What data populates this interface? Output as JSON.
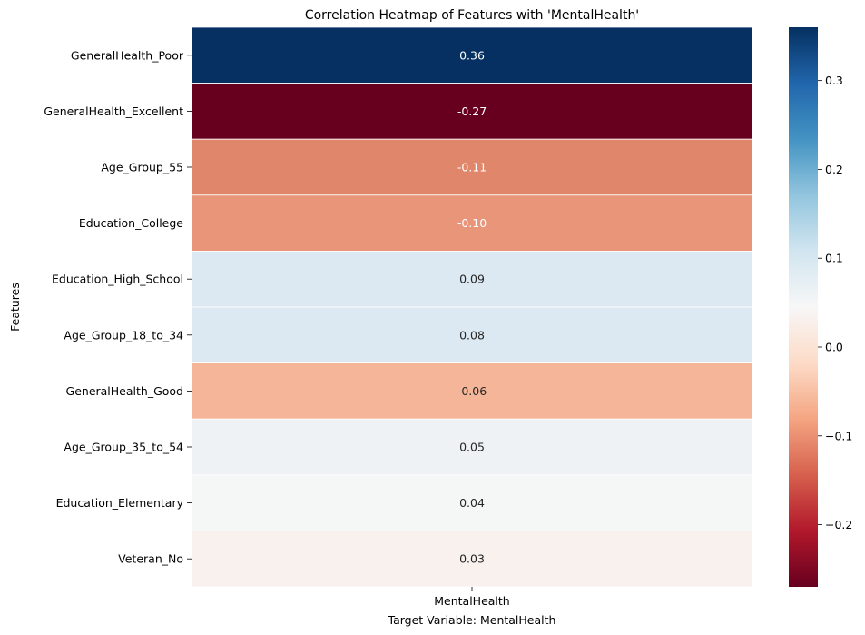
{
  "chart_data": {
    "type": "heatmap",
    "title": "Correlation Heatmap of Features with 'MentalHealth'",
    "xlabel": "Target Variable: MentalHealth",
    "ylabel": "Features",
    "columns": [
      "MentalHealth"
    ],
    "rows": [
      {
        "label": "GeneralHealth_Poor",
        "value": 0.36,
        "display": "0.36",
        "color": "#053061"
      },
      {
        "label": "GeneralHealth_Excellent",
        "value": -0.27,
        "display": "-0.27",
        "color": "#67001f"
      },
      {
        "label": "Age_Group_55",
        "value": -0.11,
        "display": "-0.11",
        "color": "#e0876b"
      },
      {
        "label": "Education_College",
        "value": -0.1,
        "display": "-0.10",
        "color": "#e8957a"
      },
      {
        "label": "Education_High_School",
        "value": 0.09,
        "display": "0.09",
        "color": "#dce9f2"
      },
      {
        "label": "Age_Group_18_to_34",
        "value": 0.08,
        "display": "0.08",
        "color": "#dde9f2"
      },
      {
        "label": "GeneralHealth_Good",
        "value": -0.06,
        "display": "-0.06",
        "color": "#f4b598"
      },
      {
        "label": "Age_Group_35_to_54",
        "value": 0.05,
        "display": "0.05",
        "color": "#eef2f5"
      },
      {
        "label": "Education_Elementary",
        "value": 0.04,
        "display": "0.04",
        "color": "#f5f6f6"
      },
      {
        "label": "Veteran_No",
        "value": 0.03,
        "display": "0.03",
        "color": "#f8f1ee"
      }
    ],
    "colorbar": {
      "colormap": "RdBu",
      "vmin": -0.27,
      "vmax": 0.36,
      "ticks": [
        {
          "value": 0.3,
          "label": "0.3"
        },
        {
          "value": 0.2,
          "label": "0.2"
        },
        {
          "value": 0.1,
          "label": "0.1"
        },
        {
          "value": 0.0,
          "label": "0.0"
        },
        {
          "value": -0.1,
          "label": "−0.1"
        },
        {
          "value": -0.2,
          "label": "−0.2"
        }
      ]
    }
  }
}
